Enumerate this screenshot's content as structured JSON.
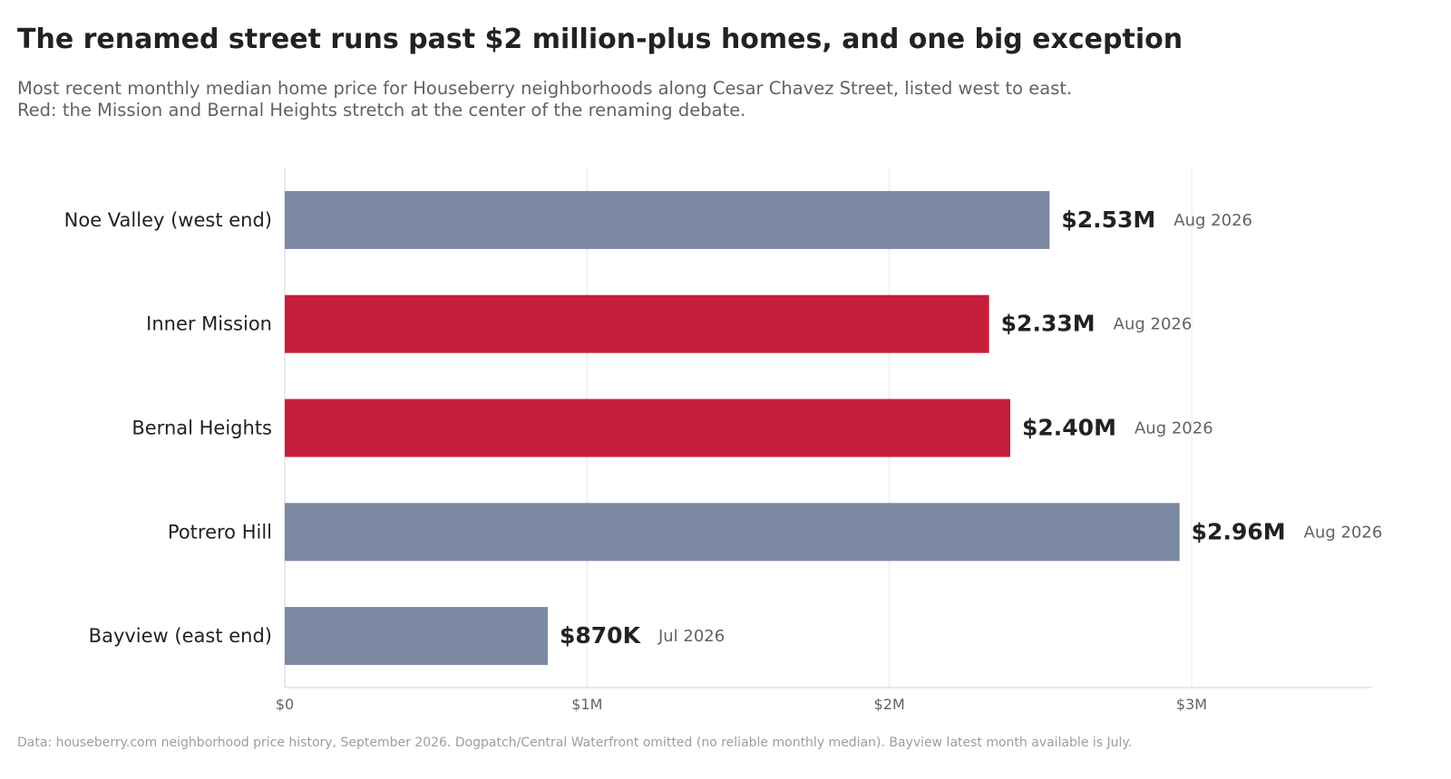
{
  "header": {
    "title": "The renamed street runs past $2 million-plus homes, and one big exception",
    "subtitle_lines": [
      "Most recent monthly median home price for Houseberry neighborhoods along Cesar Chavez Street, listed west to east.",
      "Red: the Mission and Bernal Heights stretch at the center of the renaming debate."
    ]
  },
  "footnote": "Data: houseberry.com neighborhood price history, September 2026. Dogpatch/Central Waterfront omitted (no reliable monthly median). Bayview latest month available is July.",
  "colors": {
    "highlight": "#c41e3a",
    "default": "#7b8aa2",
    "grid": "#e8e8e8",
    "axis": "#d6d6d6",
    "category_text": "#222222",
    "value_text": "#222222",
    "month_text": "#5f6368",
    "tick_text": "#5f6368"
  },
  "chart_data": {
    "type": "bar",
    "orientation": "horizontal",
    "categories": [
      "Noe Valley (west end)",
      "Inner Mission",
      "Bernal Heights",
      "Potrero Hill",
      "Bayview (east end)"
    ],
    "values": [
      2530000,
      2330000,
      2400000,
      2960000,
      870000
    ],
    "value_labels": [
      "$2.53M",
      "$2.33M",
      "$2.40M",
      "$2.96M",
      "$870K"
    ],
    "months": [
      "Aug 2026",
      "Aug 2026",
      "Aug 2026",
      "Aug 2026",
      "Jul 2026"
    ],
    "highlighted": [
      false,
      true,
      true,
      false,
      false
    ],
    "x_ticks": [
      0,
      1000000,
      2000000,
      3000000
    ],
    "x_tick_labels": [
      "$0",
      "$1M",
      "$2M",
      "$3M"
    ],
    "xlim": [
      0,
      3600000
    ],
    "grid": true,
    "legend": "none"
  }
}
